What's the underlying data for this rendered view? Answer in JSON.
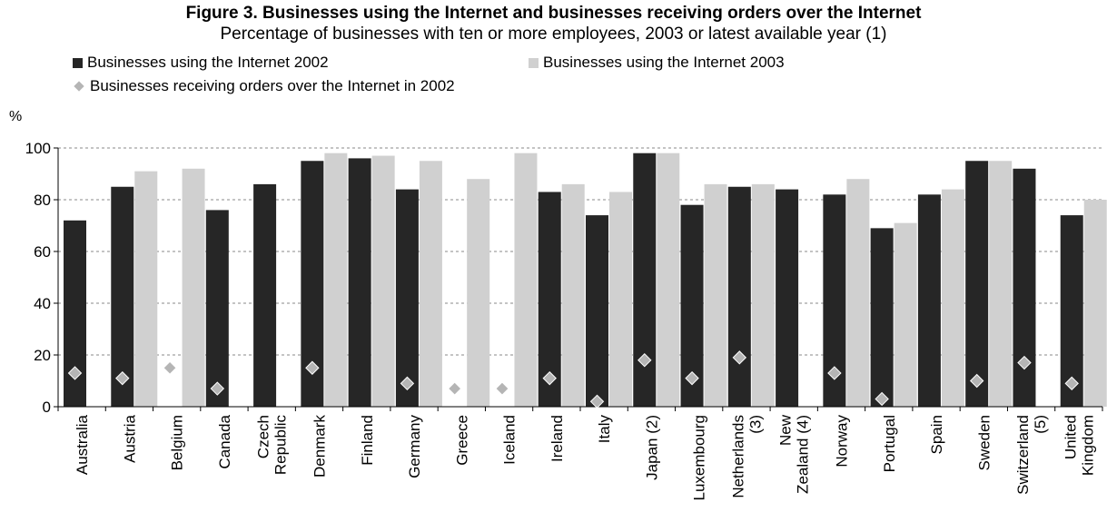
{
  "chart_data": {
    "type": "bar",
    "title": "Figure 3. Businesses using the Internet and businesses receiving orders over the Internet",
    "subtitle": "Percentage of businesses with ten or more employees, 2003 or latest available year (1)",
    "ylabel": "%",
    "ylim": [
      0,
      100
    ],
    "yticks": [
      0,
      20,
      40,
      60,
      80,
      100
    ],
    "grid": "horizontal dashed",
    "legend_position": "top-left",
    "categories": [
      "Australia",
      "Austria",
      "Belgium",
      "Canada",
      "Czech Republic",
      "Denmark",
      "Finland",
      "Germany",
      "Greece",
      "Iceland",
      "Ireland",
      "Italy",
      "Japan (2)",
      "Luxembourg",
      "Netherlands (3)",
      "New Zealand (4)",
      "Norway",
      "Portugal",
      "Spain",
      "Sweden",
      "Switzerland (5)",
      "United Kingdom"
    ],
    "category_label_lines": [
      [
        "Australia"
      ],
      [
        "Austria"
      ],
      [
        "Belgium"
      ],
      [
        "Canada"
      ],
      [
        "Czech",
        "Republic"
      ],
      [
        "Denmark"
      ],
      [
        "Finland"
      ],
      [
        "Germany"
      ],
      [
        "Greece"
      ],
      [
        "Iceland"
      ],
      [
        "Ireland"
      ],
      [
        "Italy"
      ],
      [
        "Japan (2)"
      ],
      [
        "Luxembourg"
      ],
      [
        "Netherlands",
        "(3)"
      ],
      [
        "New",
        "Zealand (4)"
      ],
      [
        "Norway"
      ],
      [
        "Portugal"
      ],
      [
        "Spain"
      ],
      [
        "Sweden"
      ],
      [
        "Switzerland",
        "(5)"
      ],
      [
        "United",
        "Kingdom"
      ]
    ],
    "series": [
      {
        "name": "Businesses using the Internet 2002",
        "kind": "bar",
        "color": "#262626",
        "values": [
          72,
          85,
          null,
          76,
          86,
          95,
          96,
          84,
          null,
          null,
          83,
          74,
          98,
          78,
          85,
          84,
          82,
          69,
          82,
          95,
          92,
          74
        ]
      },
      {
        "name": "Businesses using the Internet 2003",
        "kind": "bar",
        "color": "#d0d0d0",
        "values": [
          null,
          91,
          92,
          null,
          null,
          98,
          97,
          95,
          88,
          98,
          86,
          83,
          98,
          86,
          86,
          null,
          88,
          71,
          84,
          95,
          null,
          80
        ]
      },
      {
        "name": "Businesses receiving orders over the Internet in 2002",
        "kind": "marker-diamond",
        "color": "#b5b5b5",
        "values": [
          13,
          11,
          15,
          7,
          null,
          15,
          null,
          9,
          7,
          7,
          11,
          2,
          18,
          11,
          19,
          null,
          13,
          3,
          null,
          10,
          17,
          9
        ]
      }
    ]
  }
}
